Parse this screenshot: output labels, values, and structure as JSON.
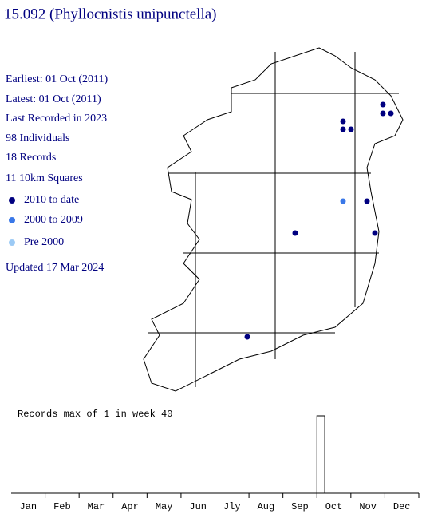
{
  "header": {
    "title": "15.092 (Phyllocnistis unipunctella)"
  },
  "stats": [
    "Earliest: 01 Oct (2011)",
    "Latest: 01 Oct (2011)",
    "Last Recorded in 2023",
    "98 Individuals",
    "18 Records",
    "11 10km Squares"
  ],
  "legend": [
    {
      "label": "2010 to date",
      "color": "#000080"
    },
    {
      "label": "2000 to 2009",
      "color": "#3a78e8"
    },
    {
      "label": "Pre 2000",
      "color": "#9ccaf5"
    }
  ],
  "updated": "Updated 17 Mar 2024",
  "histogram": {
    "title": "Records max of 1 in week 40",
    "months": [
      "Jan",
      "Feb",
      "Mar",
      "Apr",
      "May",
      "Jun",
      "Jly",
      "Aug",
      "Sep",
      "Oct",
      "Nov",
      "Dec"
    ],
    "weeks": 52,
    "ymax": 1,
    "bars": [
      {
        "week": 40,
        "records": 1
      }
    ]
  }
}
